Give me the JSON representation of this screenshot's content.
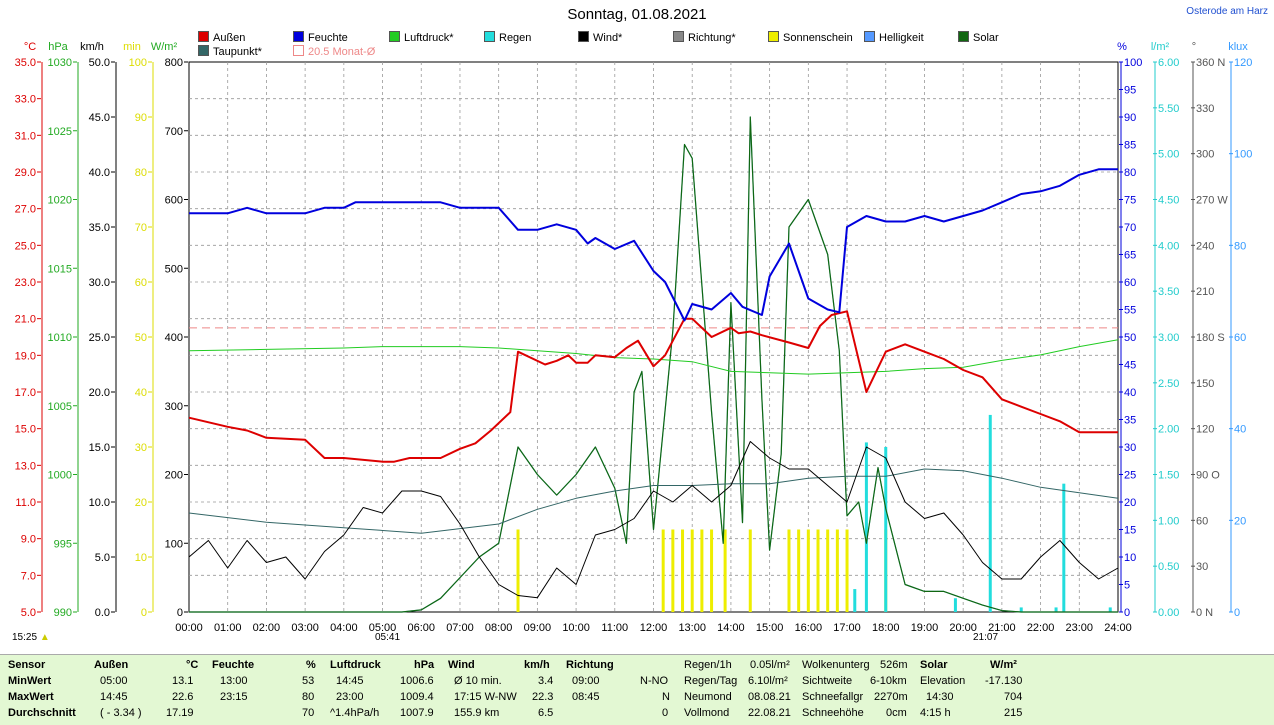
{
  "title": "Sonntag, 01.08.2021",
  "location": "Osterode am Harz",
  "legend": [
    {
      "key": "aussen",
      "label": "Außen",
      "color": "#dd0000"
    },
    {
      "key": "feuchte",
      "label": "Feuchte",
      "color": "#0000dd"
    },
    {
      "key": "luftdruck",
      "label": "Luftdruck*",
      "color": "#22cc22"
    },
    {
      "key": "regen",
      "label": "Regen",
      "color": "#22dddd"
    },
    {
      "key": "wind",
      "label": "Wind*",
      "color": "#000000"
    },
    {
      "key": "richtung",
      "label": "Richtung*",
      "color": "#888888"
    },
    {
      "key": "sonne",
      "label": "Sonnenschein",
      "color": "#eeee00"
    },
    {
      "key": "hell",
      "label": "Helligkeit",
      "color": "#5599ff"
    },
    {
      "key": "solar",
      "label": "Solar",
      "color": "#116611"
    },
    {
      "key": "taupunkt",
      "label": "Taupunkt*",
      "color": "#336666"
    },
    {
      "key": "monat",
      "label": "20.5 Monat-Ø",
      "color": "#ee8888"
    }
  ],
  "units": {
    "temp": "°C",
    "hpa": "hPa",
    "kmh": "km/h",
    "min": "min",
    "wm2": "W/m²",
    "pct": "%",
    "lm2": "l/m²",
    "deg": "°",
    "klux": "klux"
  },
  "axes": {
    "temp": [
      "35.0",
      "33.0",
      "31.0",
      "29.0",
      "27.0",
      "25.0",
      "23.0",
      "21.0",
      "19.0",
      "17.0",
      "15.0",
      "13.0",
      "11.0",
      "9.0",
      "7.0",
      "5.0"
    ],
    "hpa": [
      "1030",
      "1025",
      "1020",
      "1015",
      "1010",
      "1005",
      "1000",
      "995",
      "990"
    ],
    "kmh": [
      "50.0",
      "45.0",
      "40.0",
      "35.0",
      "30.0",
      "25.0",
      "20.0",
      "15.0",
      "10.0",
      "5.0",
      "0.0"
    ],
    "min": [
      "100",
      "90",
      "80",
      "70",
      "60",
      "50",
      "40",
      "30",
      "20",
      "10",
      "0"
    ],
    "wm2": [
      "800",
      "700",
      "600",
      "500",
      "400",
      "300",
      "200",
      "100",
      "0"
    ],
    "pct": [
      "100",
      "95",
      "90",
      "85",
      "80",
      "75",
      "70",
      "65",
      "60",
      "55",
      "50",
      "45",
      "40",
      "35",
      "30",
      "25",
      "20",
      "15",
      "10",
      "5",
      "0"
    ],
    "lm2": [
      "6.00",
      "5.50",
      "5.00",
      "4.50",
      "4.00",
      "3.50",
      "3.00",
      "2.50",
      "2.00",
      "1.50",
      "1.00",
      "0.50",
      "0.00"
    ],
    "deg": [
      "360 N",
      "330",
      "300",
      "270 W",
      "240",
      "210",
      "180 S",
      "150",
      "120",
      "90 O",
      "60",
      "30",
      "0 N"
    ],
    "klux": [
      "120",
      "100",
      "80",
      "60",
      "40",
      "20",
      "0"
    ],
    "time": [
      "00:00",
      "01:00",
      "02:00",
      "03:00",
      "04:00",
      "05:00",
      "06:00",
      "07:00",
      "08:00",
      "09:00",
      "10:00",
      "11:00",
      "12:00",
      "13:00",
      "14:00",
      "15:00",
      "16:00",
      "17:00",
      "18:00",
      "19:00",
      "20:00",
      "21:00",
      "22:00",
      "23:00",
      "24:00"
    ]
  },
  "markers": {
    "now": "15:25",
    "sunrise": "05:41",
    "sunset": "21:07"
  },
  "chart_data": {
    "type": "line",
    "title": "Sonntag, 01.08.2021",
    "x_unit": "hour",
    "monthly_avg_temp": 20.5,
    "series": [
      {
        "name": "Außen",
        "unit": "°C",
        "x": [
          0,
          1,
          1.5,
          2,
          3,
          3.5,
          4,
          5,
          5.3,
          5.7,
          6,
          6.5,
          7,
          7.4,
          7.8,
          8.3,
          8.5,
          9.2,
          9.5,
          9.8,
          10,
          10.3,
          10.5,
          11,
          11.3,
          11.6,
          12,
          12.3,
          12.8,
          13,
          13.5,
          14,
          14.2,
          14.5,
          14.8,
          15.5,
          16,
          16.3,
          16.6,
          17,
          17.5,
          18,
          18.5,
          19,
          19.5,
          20,
          20.5,
          21,
          21.5,
          22,
          22.5,
          23,
          23.5,
          24
        ],
        "values": [
          15.6,
          15.1,
          14.9,
          14.5,
          14.4,
          13.4,
          13.4,
          13.2,
          13.2,
          13.4,
          13.4,
          13.4,
          13.9,
          14.2,
          14.9,
          15.9,
          19.2,
          18.5,
          18.7,
          19.0,
          18.6,
          18.6,
          19.0,
          18.9,
          19.4,
          19.8,
          18.4,
          19.0,
          21.0,
          21.0,
          20.0,
          20.5,
          20.2,
          20.3,
          20.1,
          19.7,
          19.4,
          20.6,
          21.2,
          21.4,
          17.0,
          19.2,
          19.6,
          19.2,
          18.8,
          18.2,
          17.8,
          16.6,
          16.2,
          15.8,
          15.4,
          14.8,
          14.8,
          14.8
        ]
      },
      {
        "name": "Feuchte",
        "unit": "%",
        "x": [
          0,
          1,
          1.5,
          2,
          3,
          3.5,
          4,
          4.3,
          4.8,
          5.5,
          6.5,
          7,
          8,
          8.5,
          9,
          9.5,
          10,
          10.3,
          10.5,
          11,
          11.5,
          12,
          12.3,
          12.8,
          13,
          13.5,
          14,
          14.3,
          14.8,
          15,
          15.5,
          16,
          16.5,
          16.8,
          17,
          17.5,
          18,
          18.5,
          19,
          19.5,
          20,
          20.5,
          21,
          21.5,
          22,
          22.5,
          23,
          23.5,
          24
        ],
        "values": [
          72.5,
          72.5,
          73.5,
          72.5,
          72.5,
          73.5,
          73.5,
          74.5,
          74.5,
          74.5,
          74.5,
          73.5,
          73.5,
          69.5,
          69.5,
          70.5,
          69.5,
          67.0,
          68.0,
          66.0,
          67.5,
          62.0,
          60.0,
          53.0,
          56.0,
          55.0,
          58.0,
          55.5,
          54.0,
          61.0,
          67.0,
          57.0,
          55.0,
          54.5,
          70.0,
          72.0,
          71.0,
          71.0,
          72.0,
          71.0,
          72.0,
          73.0,
          74.5,
          76.0,
          76.5,
          77.5,
          79.5,
          80.5,
          80.5
        ]
      },
      {
        "name": "Luftdruck",
        "unit": "hPa",
        "x": [
          0,
          2,
          4,
          5,
          6,
          7,
          8,
          9,
          10,
          11,
          12,
          13,
          14,
          15,
          16,
          17,
          18,
          19,
          20,
          21,
          22,
          23,
          24
        ],
        "values": [
          1009.0,
          1009.1,
          1009.2,
          1009.3,
          1009.3,
          1009.3,
          1009.2,
          1009.0,
          1008.8,
          1008.5,
          1008.4,
          1008.2,
          1007.5,
          1007.4,
          1007.3,
          1007.4,
          1007.5,
          1007.7,
          1007.8,
          1008.3,
          1008.7,
          1009.3,
          1009.8
        ]
      },
      {
        "name": "Wind",
        "unit": "km/h",
        "x": [
          0,
          0.5,
          1,
          1.5,
          2,
          2.5,
          3,
          3.5,
          4,
          4.5,
          5,
          5.5,
          6,
          6.5,
          7,
          7.5,
          8,
          8.5,
          9,
          9.5,
          10,
          10.5,
          11,
          11.5,
          12,
          12.5,
          13,
          13.5,
          14,
          14.5,
          15,
          15.5,
          16,
          16.5,
          17,
          17.5,
          18,
          18.5,
          19,
          19.5,
          20,
          20.5,
          21,
          21.5,
          22,
          22.5,
          23,
          23.5,
          24
        ],
        "values": [
          5.0,
          6.5,
          4.0,
          6.5,
          4.5,
          5.0,
          3.0,
          5.5,
          7.0,
          9.5,
          9.0,
          11.0,
          11.0,
          10.5,
          8.0,
          5.0,
          2.5,
          1.5,
          1.3,
          4.0,
          2.5,
          7.0,
          7.5,
          8.5,
          11.0,
          10.0,
          11.5,
          10.0,
          11.5,
          15.5,
          14.0,
          13.0,
          13.0,
          11.5,
          10.0,
          15.0,
          14.0,
          10.0,
          8.5,
          9.0,
          7.0,
          4.5,
          3.0,
          3.0,
          5.0,
          6.5,
          4.5,
          3.0,
          4.0
        ]
      },
      {
        "name": "Taupunkt",
        "unit": "°C",
        "x": [
          0,
          2,
          4,
          6,
          8,
          9,
          10,
          11,
          12,
          13,
          14,
          15,
          16,
          17,
          18,
          19,
          20,
          21,
          22,
          23,
          24
        ],
        "values": [
          10.4,
          9.9,
          9.6,
          9.3,
          9.8,
          10.6,
          11.2,
          11.6,
          11.9,
          11.9,
          12.0,
          12.0,
          12.3,
          12.4,
          12.4,
          12.8,
          12.7,
          12.3,
          11.8,
          11.5,
          11.2
        ]
      },
      {
        "name": "Solar",
        "unit": "W/m²",
        "x": [
          0,
          5.5,
          6,
          6.5,
          7,
          7.5,
          8,
          8.5,
          9,
          9.5,
          10,
          10.5,
          11,
          11.3,
          11.5,
          11.7,
          12,
          12.5,
          12.8,
          13,
          13.5,
          13.8,
          14,
          14.3,
          14.5,
          14.8,
          15,
          15.3,
          15.5,
          16,
          16.5,
          16.8,
          17,
          17.3,
          17.5,
          17.8,
          18,
          18.5,
          19,
          19.5,
          20,
          20.5,
          21,
          21.5,
          24
        ],
        "values": [
          0,
          0,
          3,
          20,
          50,
          80,
          100,
          240,
          200,
          170,
          200,
          240,
          180,
          100,
          320,
          350,
          120,
          410,
          680,
          660,
          290,
          100,
          450,
          130,
          720,
          310,
          90,
          230,
          560,
          600,
          520,
          380,
          140,
          160,
          100,
          210,
          150,
          40,
          30,
          30,
          20,
          10,
          2,
          0,
          0
        ]
      }
    ]
  },
  "summary": {
    "sensor": {
      "title": "Sensor",
      "rows": [
        "MinWert",
        "MaxWert",
        "Durchschnitt"
      ]
    },
    "aussen": {
      "title": "Außen",
      "unit": "°C",
      "cols": [
        [
          "05:00",
          "13.1"
        ],
        [
          "14:45",
          "22.6"
        ],
        [
          "( - 3.34 )",
          "17.19"
        ]
      ]
    },
    "feuchte": {
      "title": "Feuchte",
      "unit": "%",
      "cols": [
        [
          "13:00",
          "53"
        ],
        [
          "23:15",
          "80"
        ],
        [
          "",
          "70"
        ]
      ]
    },
    "luftdruck": {
      "title": "Luftdruck",
      "unit": "hPa",
      "cols": [
        [
          "14:45",
          "1006.6"
        ],
        [
          "23:00",
          "1009.4"
        ],
        [
          "^1.4hPa/h",
          "1007.9"
        ]
      ]
    },
    "wind": {
      "title": "Wind",
      "unit": "km/h",
      "cols": [
        [
          "Ø 10 min.",
          "3.4"
        ],
        [
          "17:15  W-NW",
          "22.3"
        ],
        [
          "155.9 km",
          "6.5"
        ]
      ]
    },
    "richtung": {
      "title": "Richtung",
      "cols": [
        [
          "09:00",
          "N-NO"
        ],
        [
          "08:45",
          "N"
        ],
        [
          "",
          "0"
        ]
      ]
    },
    "regen": {
      "rows": [
        [
          "Regen/1h",
          "0.05l/m²"
        ],
        [
          "Regen/Tag",
          "6.10l/m²"
        ],
        [
          "Neumond",
          "08.08.21"
        ],
        [
          "Vollmond",
          "22.08.21"
        ]
      ]
    },
    "wolken": {
      "rows": [
        [
          "Wolkenunterg",
          "526m"
        ],
        [
          "Sichtweite",
          "6-10km"
        ],
        [
          "Schneefallgr",
          "2270m"
        ],
        [
          "Schneehöhe",
          "0cm"
        ]
      ]
    },
    "solar": {
      "title": "Solar",
      "unit": "W/m²",
      "cols": [
        [
          "Elevation",
          "-17.130"
        ],
        [
          "14:30",
          "704"
        ],
        [
          "4:15 h",
          "215"
        ]
      ]
    }
  }
}
